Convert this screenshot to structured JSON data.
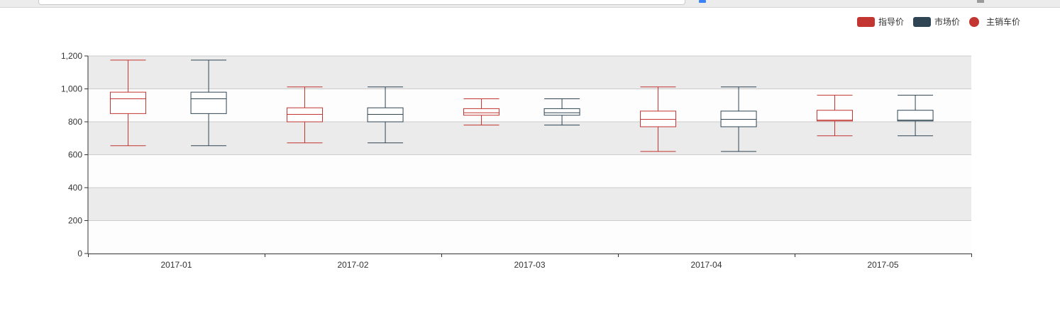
{
  "colors": {
    "guide": "#c23531",
    "market": "#2f4554",
    "band_dark": "#ebebeb",
    "band_light": "#fdfdfd"
  },
  "legend": {
    "placement": "top-right",
    "items": [
      {
        "label": "指导价",
        "shape": "rounded-rect",
        "color": "#c23531"
      },
      {
        "label": "市场价",
        "shape": "rounded-rect",
        "color": "#2f4554"
      },
      {
        "label": "主销车价",
        "shape": "circle",
        "color": "#c23531"
      }
    ]
  },
  "chart_data": {
    "type": "boxplot",
    "categories": [
      "2017-01",
      "2017-02",
      "2017-03",
      "2017-04",
      "2017-05"
    ],
    "ylim": [
      0,
      1200
    ],
    "yticks": [
      0,
      200,
      400,
      600,
      800,
      1000,
      1200
    ],
    "ytick_labels": [
      "0",
      "200",
      "400",
      "600",
      "800",
      "1,000",
      "1,200"
    ],
    "grid": true,
    "series": [
      {
        "name": "指导价",
        "color": "#c23531",
        "boxes": [
          {
            "min": 655,
            "q1": 850,
            "median": 940,
            "q3": 980,
            "max": 1175
          },
          {
            "min": 672,
            "q1": 800,
            "median": 845,
            "q3": 885,
            "max": 1012
          },
          {
            "min": 780,
            "q1": 840,
            "median": 855,
            "q3": 880,
            "max": 940
          },
          {
            "min": 620,
            "q1": 770,
            "median": 815,
            "q3": 865,
            "max": 1012
          },
          {
            "min": 715,
            "q1": 805,
            "median": 810,
            "q3": 870,
            "max": 962
          }
        ]
      },
      {
        "name": "市场价",
        "color": "#2f4554",
        "boxes": [
          {
            "min": 655,
            "q1": 850,
            "median": 940,
            "q3": 980,
            "max": 1175
          },
          {
            "min": 672,
            "q1": 800,
            "median": 845,
            "q3": 885,
            "max": 1012
          },
          {
            "min": 780,
            "q1": 840,
            "median": 855,
            "q3": 880,
            "max": 940
          },
          {
            "min": 620,
            "q1": 770,
            "median": 815,
            "q3": 865,
            "max": 1012
          },
          {
            "min": 715,
            "q1": 805,
            "median": 810,
            "q3": 870,
            "max": 962
          }
        ]
      }
    ]
  }
}
